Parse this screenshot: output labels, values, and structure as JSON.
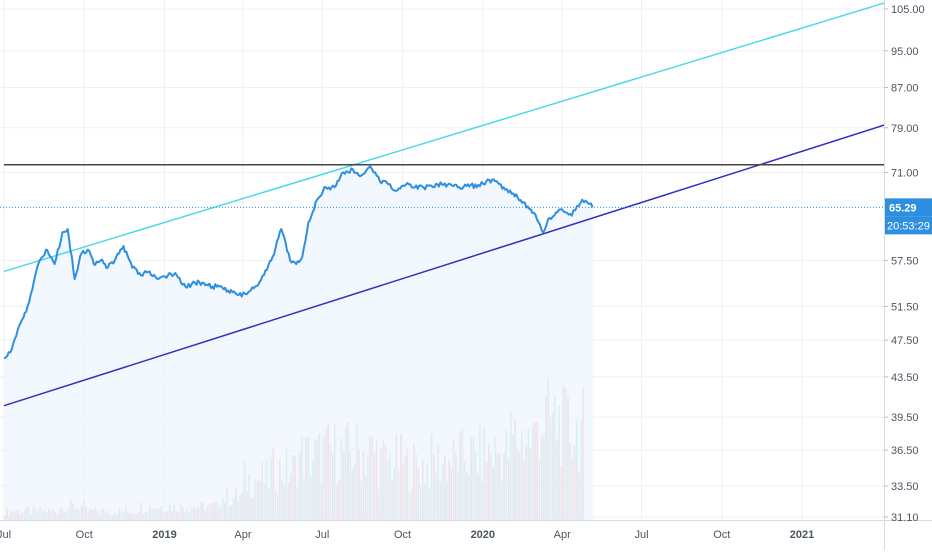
{
  "chart_data": {
    "type": "line",
    "y_axis": {
      "scale": "log",
      "position": "right",
      "ticks": [
        "105.00",
        "95.00",
        "87.00",
        "79.00",
        "71.00",
        "57.50",
        "51.50",
        "47.50",
        "43.50",
        "39.50",
        "36.50",
        "33.50",
        "31.10"
      ],
      "range": [
        31.1,
        105
      ]
    },
    "x_axis": {
      "ticks": [
        "Jul",
        "Oct",
        "2019",
        "Apr",
        "Jul",
        "Oct",
        "2020",
        "Apr",
        "Jul",
        "Oct",
        "2021"
      ],
      "range": [
        "2018-07",
        "2021-04"
      ]
    },
    "current_price_label": "65.29",
    "countdown_label": "20:53:29",
    "price_series": {
      "x": [
        "2018-07-01",
        "2018-07-10",
        "2018-07-20",
        "2018-07-28",
        "2018-08-08",
        "2018-08-18",
        "2018-08-28",
        "2018-09-06",
        "2018-09-12",
        "2018-09-20",
        "2018-09-28",
        "2018-10-05",
        "2018-10-12",
        "2018-10-20",
        "2018-10-28",
        "2018-11-05",
        "2018-11-15",
        "2018-11-25",
        "2018-12-05",
        "2018-12-15",
        "2018-12-25",
        "2019-01-05",
        "2019-01-15",
        "2019-01-25",
        "2019-02-05",
        "2019-02-15",
        "2019-02-25",
        "2019-03-05",
        "2019-03-15",
        "2019-03-25",
        "2019-04-05",
        "2019-04-15",
        "2019-04-25",
        "2019-05-05",
        "2019-05-15",
        "2019-05-25",
        "2019-06-01",
        "2019-06-08",
        "2019-06-15",
        "2019-06-25",
        "2019-07-05",
        "2019-07-15",
        "2019-07-25",
        "2019-08-05",
        "2019-08-15",
        "2019-08-25",
        "2019-09-05",
        "2019-09-15",
        "2019-09-25",
        "2019-10-05",
        "2019-10-15",
        "2019-10-25",
        "2019-11-05",
        "2019-11-15",
        "2019-11-25",
        "2019-12-05",
        "2019-12-15",
        "2019-12-25",
        "2020-01-05",
        "2020-01-15",
        "2020-01-25",
        "2020-02-05",
        "2020-02-15",
        "2020-02-25",
        "2020-03-05",
        "2020-03-10",
        "2020-03-16",
        "2020-03-23",
        "2020-03-30",
        "2020-04-05",
        "2020-04-12",
        "2020-04-18",
        "2020-04-24",
        "2020-04-30",
        "2020-05-06"
      ],
      "y": [
        45.5,
        46.5,
        49.5,
        51.5,
        56.5,
        59.0,
        57.0,
        61.5,
        62.0,
        55.0,
        58.5,
        59.0,
        57.0,
        57.5,
        56.5,
        57.5,
        59.5,
        56.5,
        55.5,
        56.0,
        55.0,
        55.5,
        55.5,
        54.0,
        54.5,
        54.5,
        54.0,
        54.0,
        53.5,
        53.0,
        53.0,
        54.0,
        55.5,
        58.0,
        62.0,
        57.5,
        57.0,
        58.0,
        63.0,
        66.5,
        68.5,
        68.5,
        71.0,
        71.5,
        70.5,
        72.0,
        69.5,
        69.0,
        68.0,
        69.0,
        68.5,
        68.5,
        68.5,
        69.0,
        69.0,
        68.5,
        69.0,
        68.5,
        69.5,
        69.5,
        68.5,
        67.5,
        66.0,
        65.0,
        63.0,
        61.5,
        63.5,
        64.0,
        65.0,
        64.5,
        64.0,
        65.5,
        66.5,
        66.0,
        65.3
      ]
    },
    "volume_series": {
      "x": [
        "2018-07",
        "2018-08",
        "2018-09",
        "2018-10",
        "2018-11",
        "2018-12",
        "2019-01",
        "2019-02",
        "2019-03",
        "2019-04",
        "2019-05",
        "2019-06",
        "2019-07",
        "2019-08",
        "2019-09",
        "2019-10",
        "2019-11",
        "2019-12",
        "2020-01",
        "2020-02",
        "2020-03",
        "2020-04"
      ],
      "values": [
        2,
        2,
        3,
        2,
        2,
        3,
        3,
        3,
        5,
        9,
        11,
        14,
        15,
        15,
        13,
        12,
        13,
        14,
        15,
        18,
        22,
        20
      ]
    },
    "trendlines": [
      {
        "name": "upper-channel",
        "color": "#4dd9e8",
        "points": [
          [
            "2018-07-01",
            56.0
          ],
          [
            "2021-04-05",
            106.5
          ]
        ]
      },
      {
        "name": "lower-channel",
        "color": "#3030c0",
        "points": [
          [
            "2018-07-01",
            40.6
          ],
          [
            "2021-04-05",
            79.5
          ]
        ]
      },
      {
        "name": "resistance",
        "color": "#444444",
        "points": [
          [
            "2018-07-01",
            72.3
          ],
          [
            "2021-04-05",
            72.3
          ]
        ]
      }
    ],
    "current_price_line": 65.29,
    "colors": {
      "price_line": "#2e8fe0",
      "area_fill": "#eef5fd",
      "volume_up": "#a8d8d0",
      "volume_down": "#f2a9a9",
      "grid": "#eef0f3",
      "price_label_bg": "#2e8fe0"
    },
    "grid": true
  }
}
